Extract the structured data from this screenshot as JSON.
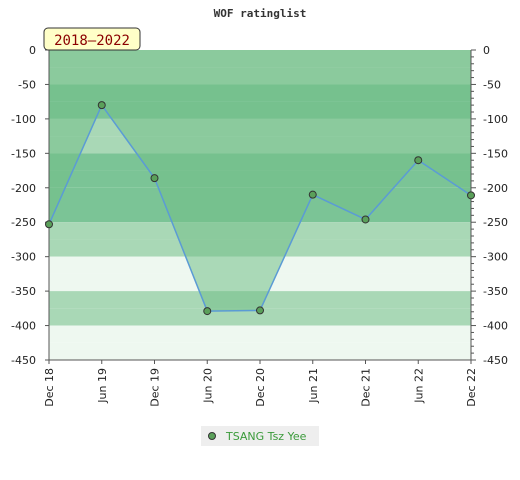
{
  "chart_data": {
    "type": "area",
    "title": "WOF ratinglist",
    "badge": "2018–2022",
    "categories": [
      "Dec 18",
      "Jun 19",
      "Dec 19",
      "Jun 20",
      "Dec 20",
      "Jun 21",
      "Dec 21",
      "Jun 22",
      "Dec 22"
    ],
    "series": [
      {
        "name": "TSANG Tsz Yee",
        "values": [
          -253,
          -80,
          -186,
          -379,
          -378,
          -210,
          -246,
          -160,
          -211
        ]
      }
    ],
    "ylim": [
      -450,
      0
    ],
    "yticks": [
      0,
      -50,
      -100,
      -150,
      -200,
      -250,
      -300,
      -350,
      -400,
      -450
    ],
    "xlabel": "",
    "ylabel": "",
    "legend_position": "bottom",
    "colors": {
      "area_fill": "#72bf88",
      "line": "#5b9bd5",
      "marker_fill": "#5aa05a",
      "band_dark": "#7bc496",
      "band_mid": "#a9d8b6",
      "band_light": "#eef8f0",
      "badge_bg": "#ffffc8"
    }
  }
}
